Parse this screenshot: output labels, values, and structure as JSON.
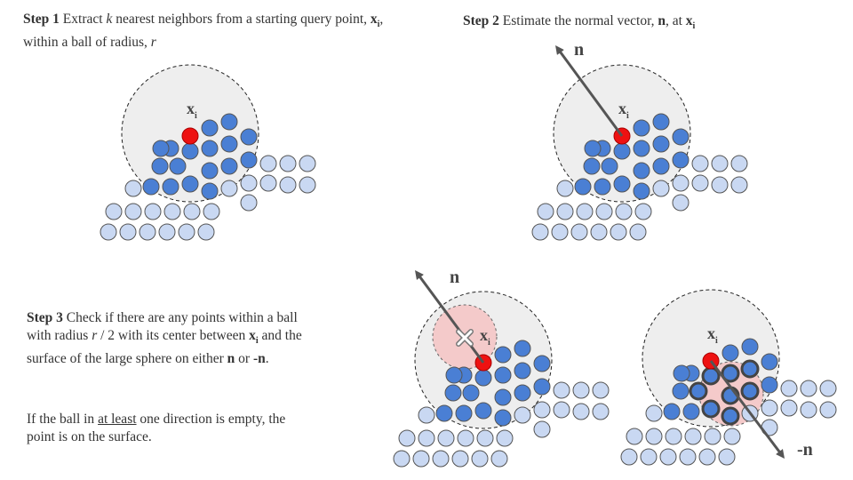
{
  "step1": {
    "label": "Step 1",
    "text_a": " Extract ",
    "k": "k",
    "text_b": " nearest neighbors from a starting query point, ",
    "x": "x",
    "sub": "i",
    "text_c": ", within a ball of radius, ",
    "r": "r"
  },
  "step2": {
    "label": "Step 2",
    "text_a": " Estimate the normal vector, ",
    "n": "n",
    "text_b": ", at ",
    "x": "x",
    "sub": "i"
  },
  "step3": {
    "label": "Step 3",
    "text_a": " Check if there are any points within a ball with radius ",
    "r": "r",
    "text_b": " / 2 with its center between ",
    "x": "x",
    "sub": "i",
    "text_c": " and the surface of the large sphere on either ",
    "n": "n",
    "text_d": " or ",
    "neg_n": "-n",
    "text_e": "."
  },
  "note": {
    "text_a": "If the ball in ",
    "underline": "at least",
    "text_b": " one direction is empty, the point is on the surface."
  },
  "labels": {
    "xi_x": "x",
    "xi_sub": "i",
    "n": "n",
    "neg_n": "-n"
  },
  "colors": {
    "neighbor": "#4a7fd4",
    "background_point": "#c9d8f2",
    "query_point": "#ee1111",
    "ball_fill": "#eeeeee",
    "small_ball_fill": "#f4caca",
    "arrow": "#555555"
  }
}
